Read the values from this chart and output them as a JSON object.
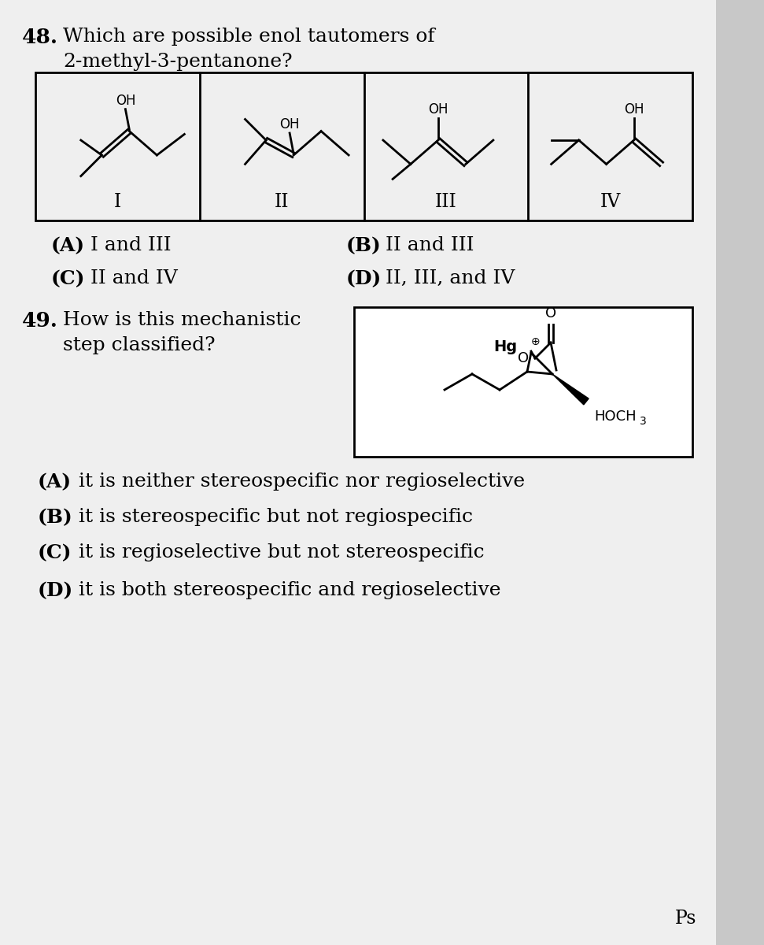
{
  "bg_color": "#c8c8c8",
  "page_bg": "#efefef",
  "q48_number": "48.",
  "q48_text_line1": "Which are possible enol tautomers of",
  "q48_text_line2": "2-methyl-3-pentanone?",
  "q48_labels": [
    "I",
    "II",
    "III",
    "IV"
  ],
  "q48_A": "(A)",
  "q48_A_text": "I and III",
  "q48_B": "(B)",
  "q48_B_text": "II and III",
  "q48_C": "(C)",
  "q48_C_text": "II and IV",
  "q48_D": "(D)",
  "q48_D_text": "II, III, and IV",
  "q49_number": "49.",
  "q49_text_line1": "How is this mechanistic",
  "q49_text_line2": "step classified?",
  "q49_A": "(A)",
  "q49_A_text": "it is neither stereospecific nor regioselective",
  "q49_B": "(B)",
  "q49_B_text": "it is stereospecific but not regiospecific",
  "q49_C": "(C)",
  "q49_C_text": "it is regioselective but not stereospecific",
  "q49_D": "(D)",
  "q49_D_text": "it is both stereospecific and regioselective",
  "footer": "Ps"
}
